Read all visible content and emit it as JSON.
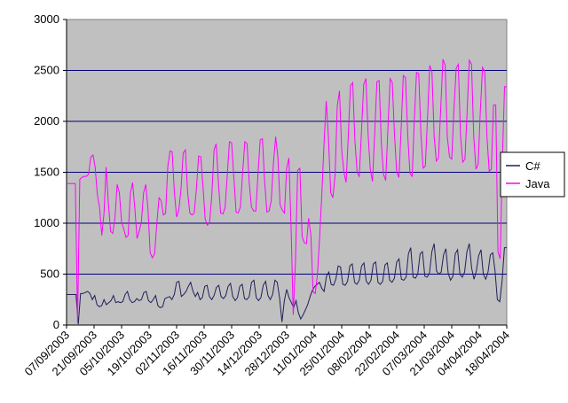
{
  "chart_data": {
    "type": "line",
    "title": "",
    "xlabel": "",
    "ylabel": "",
    "ylim": [
      0,
      3000
    ],
    "yticks": [
      0,
      500,
      1000,
      1500,
      2000,
      2500,
      3000
    ],
    "xtick_labels": [
      "07/09/2003",
      "21/09/2003",
      "05/10/2003",
      "19/10/2003",
      "02/11/2003",
      "16/11/2003",
      "30/11/2003",
      "14/12/2003",
      "28/12/2003",
      "11/01/2004",
      "25/01/2004",
      "08/02/2004",
      "22/02/2004",
      "07/03/2004",
      "21/03/2004",
      "04/04/2004",
      "18/04/2004"
    ],
    "grid": "horizontal",
    "legend_position": "right",
    "plot_background": "#c0c0c0",
    "series": [
      {
        "name": "C#",
        "color": "#1f1f5c",
        "values": [
          300,
          300,
          300,
          300,
          300,
          10,
          310,
          310,
          320,
          330,
          310,
          250,
          290,
          200,
          180,
          190,
          250,
          200,
          220,
          240,
          290,
          220,
          230,
          220,
          230,
          300,
          330,
          250,
          220,
          230,
          260,
          240,
          250,
          320,
          330,
          240,
          220,
          250,
          290,
          190,
          170,
          180,
          260,
          270,
          280,
          250,
          300,
          420,
          430,
          280,
          300,
          330,
          380,
          420,
          330,
          280,
          320,
          250,
          270,
          380,
          390,
          280,
          250,
          290,
          370,
          390,
          280,
          260,
          290,
          380,
          410,
          280,
          240,
          270,
          380,
          400,
          260,
          250,
          280,
          420,
          440,
          270,
          240,
          270,
          390,
          430,
          290,
          250,
          300,
          440,
          420,
          260,
          30,
          240,
          350,
          270,
          220,
          170,
          240,
          120,
          60,
          100,
          150,
          200,
          280,
          340,
          380,
          400,
          420,
          360,
          330,
          480,
          520,
          400,
          390,
          450,
          580,
          570,
          400,
          390,
          430,
          580,
          600,
          420,
          400,
          440,
          580,
          610,
          430,
          400,
          440,
          600,
          620,
          420,
          400,
          430,
          590,
          610,
          440,
          420,
          460,
          620,
          650,
          450,
          440,
          470,
          700,
          760,
          470,
          460,
          500,
          700,
          720,
          480,
          470,
          510,
          720,
          800,
          530,
          500,
          520,
          690,
          750,
          510,
          440,
          480,
          700,
          740,
          500,
          470,
          520,
          720,
          800,
          560,
          450,
          530,
          680,
          740,
          500,
          450,
          520,
          690,
          710,
          530,
          250,
          230,
          430,
          760,
          760
        ]
      },
      {
        "name": "Java",
        "color": "#ff00ff",
        "values": [
          1390,
          1390,
          1390,
          1390,
          1390,
          20,
          1430,
          1450,
          1460,
          1460,
          1480,
          1650,
          1670,
          1550,
          1280,
          1150,
          880,
          1100,
          1550,
          1200,
          920,
          900,
          1060,
          1380,
          1300,
          1010,
          940,
          860,
          880,
          1290,
          1400,
          1150,
          850,
          920,
          1010,
          1300,
          1380,
          1130,
          710,
          660,
          700,
          1000,
          1250,
          1220,
          1080,
          1100,
          1560,
          1710,
          1700,
          1300,
          1060,
          1130,
          1340,
          1690,
          1720,
          1300,
          1100,
          1080,
          1100,
          1340,
          1660,
          1650,
          1350,
          1040,
          980,
          1010,
          1280,
          1720,
          1780,
          1400,
          1100,
          1090,
          1150,
          1460,
          1800,
          1790,
          1450,
          1110,
          1100,
          1160,
          1500,
          1800,
          1780,
          1400,
          1160,
          1120,
          1120,
          1500,
          1820,
          1830,
          1410,
          1110,
          1120,
          1220,
          1590,
          1850,
          1650,
          1180,
          1130,
          1100,
          1540,
          1640,
          950,
          100,
          620,
          1520,
          1540,
          870,
          810,
          800,
          1050,
          880,
          330,
          310,
          500,
          870,
          1300,
          1800,
          2200,
          1840,
          1300,
          1250,
          1480,
          2150,
          2300,
          1720,
          1500,
          1400,
          1850,
          2350,
          2380,
          1810,
          1500,
          1460,
          1900,
          2360,
          2420,
          1870,
          1530,
          1410,
          1880,
          2390,
          2400,
          1800,
          1480,
          1420,
          1930,
          2420,
          2380,
          1870,
          1500,
          1450,
          1930,
          2450,
          2430,
          1870,
          1490,
          1460,
          2000,
          2480,
          2470,
          1870,
          1540,
          1560,
          2030,
          2550,
          2490,
          1850,
          1610,
          1640,
          2130,
          2610,
          2550,
          1850,
          1650,
          1630,
          2120,
          2520,
          2560,
          1860,
          1600,
          1630,
          2110,
          2600,
          2560,
          1850,
          1530,
          1580,
          2100,
          2530,
          2490,
          1850,
          1510,
          1530,
          2160,
          2160,
          720,
          650,
          1600,
          2340,
          2340
        ]
      }
    ]
  }
}
